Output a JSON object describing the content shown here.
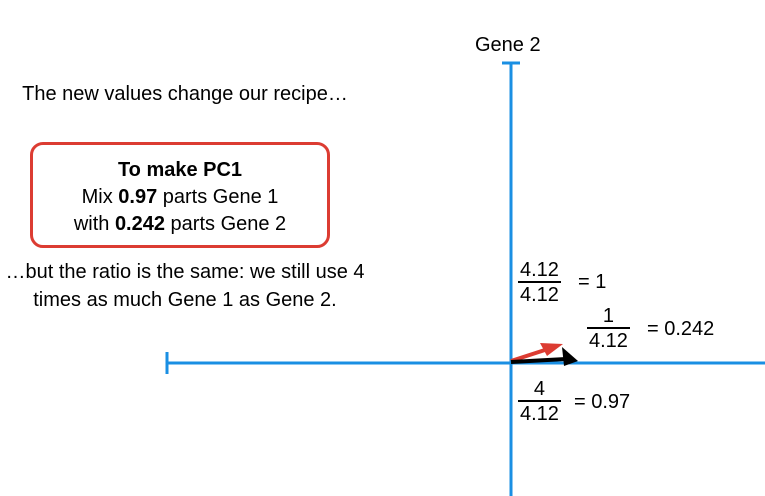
{
  "intro_text": "The new values change our recipe…",
  "recipe": {
    "title": "To make PC1",
    "line1_pre": "Mix ",
    "line1_bold": "0.97",
    "line1_post": " parts Gene 1",
    "line2_pre": "with ",
    "line2_bold": "0.242",
    "line2_post": " parts Gene 2"
  },
  "outro_text": "…but the ratio is the same: we still use 4 times as much Gene 1 as Gene 2.",
  "axis": {
    "y_label": "Gene 2"
  },
  "fractions": {
    "length": {
      "num": "4.12",
      "den": "4.12",
      "result": "= 1"
    },
    "gene2": {
      "num": "1",
      "den": "4.12",
      "result": "= 0.242"
    },
    "gene1": {
      "num": "4",
      "den": "4.12",
      "result": "= 0.97"
    }
  },
  "colors": {
    "axis": "#1a8fe3",
    "box_border": "#dc3c32",
    "new_vector": "#dc3c32",
    "old_vector": "#000000"
  }
}
